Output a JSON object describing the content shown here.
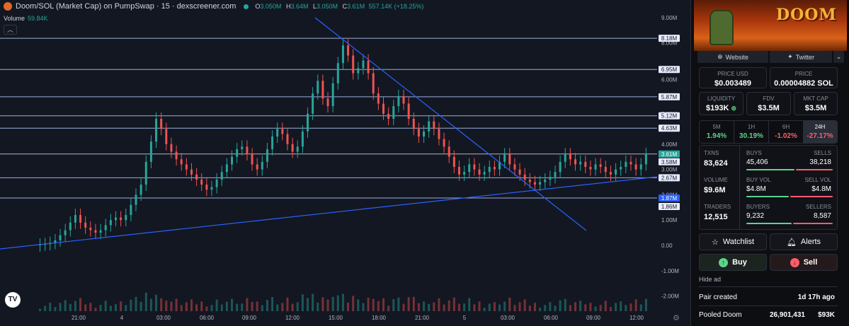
{
  "header": {
    "title": "Doom/SOL (Market Cap) on PumpSwap · 15 · dexscreener.com",
    "ohlc": {
      "o_label": "O",
      "o": "3.050M",
      "h_label": "H",
      "h": "3.64M",
      "l_label": "L",
      "l": "3.050M",
      "c_label": "C",
      "c": "3.61M",
      "change": "557.14K (+18.25%)"
    },
    "volume_label": "Volume",
    "volume_value": "59.84K",
    "collapse_icon": "chevron-up"
  },
  "chart_data": {
    "type": "candlestick",
    "y_ticks": [
      "9.00M",
      "8.00M",
      "6.00M",
      "5.00M",
      "4.00M",
      "3.00M",
      "2.00M",
      "1.00M",
      "0.00",
      "-1.00M",
      "-2.00M"
    ],
    "x_ticks": [
      "21:00",
      "4",
      "03:00",
      "06:00",
      "09:00",
      "12:00",
      "15:00",
      "18:00",
      "21:00",
      "5",
      "03:00",
      "06:00",
      "09:00",
      "12:00"
    ],
    "price_lines": [
      "8.18M",
      "6.95M",
      "5.87M",
      "5.12M",
      "4.63M",
      "3.61M",
      "3.58M",
      "2.67M",
      "1.87M",
      "1.86M"
    ],
    "current_price_label": "3.61M",
    "close_series": [
      0.03,
      0.05,
      0.1,
      0.2,
      0.4,
      0.6,
      0.9,
      1.2,
      0.9,
      0.7,
      0.6,
      0.5,
      0.6,
      0.8,
      1.0,
      1.1,
      1.0,
      1.2,
      1.6,
      2.0,
      2.4,
      3.3,
      4.1,
      5.0,
      4.6,
      4.0,
      3.7,
      3.4,
      3.2,
      3.0,
      2.8,
      2.6,
      2.4,
      2.2,
      2.3,
      2.6,
      2.9,
      3.2,
      3.5,
      3.8,
      3.9,
      3.6,
      3.2,
      3.0,
      3.3,
      3.8,
      4.3,
      4.6,
      4.4,
      4.0,
      3.7,
      3.9,
      4.5,
      5.2,
      6.0,
      6.5,
      5.8,
      5.5,
      6.4,
      7.2,
      7.9,
      7.5,
      6.8,
      7.0,
      7.3,
      6.8,
      6.0,
      5.6,
      5.2,
      5.0,
      5.5,
      5.9,
      5.6,
      5.0,
      4.6,
      4.3,
      4.5,
      4.9,
      4.6,
      4.2,
      3.9,
      3.5,
      3.1,
      2.8,
      2.9,
      3.2,
      3.0,
      2.8,
      2.9,
      3.1,
      3.0,
      3.3,
      3.6,
      3.2,
      3.0,
      2.8,
      2.6,
      2.5,
      2.4,
      2.5,
      2.6,
      2.7,
      2.9,
      3.3,
      3.6,
      3.4,
      3.2,
      3.3,
      3.1,
      3.0,
      3.2,
      3.1,
      2.9,
      2.8,
      3.0,
      3.1,
      3.3,
      3.2,
      3.0,
      3.2,
      3.61
    ],
    "trendlines": [
      {
        "name": "descending-resistance",
        "from": [
          "14:00",
          "9.00M"
        ],
        "to": [
          "08:30",
          "0.60M"
        ]
      },
      {
        "name": "ascending-support",
        "from": [
          "19:00",
          "-0.02M"
        ],
        "to": [
          "12:30",
          "2.67M"
        ]
      }
    ]
  },
  "token": {
    "banner_logo": "DOOM",
    "links": {
      "website": "Website",
      "twitter": "Twitter"
    },
    "price_usd_label": "PRICE USD",
    "price_usd": "$0.003489",
    "price_sol_label": "PRICE",
    "price_sol": "0.00004882 SOL",
    "liquidity_label": "LIQUIDITY",
    "liquidity": "$193K",
    "fdv_label": "FDV",
    "fdv": "$3.5M",
    "mktcap_label": "MKT CAP",
    "mktcap": "$3.5M",
    "timeframes": [
      {
        "label": "5M",
        "value": "1.94%",
        "color": "#5dd48a"
      },
      {
        "label": "1H",
        "value": "30.19%",
        "color": "#5dd48a"
      },
      {
        "label": "6H",
        "value": "-1.02%",
        "color": "#ff5c6c"
      },
      {
        "label": "24H",
        "value": "-27.17%",
        "color": "#ff5c6c"
      }
    ],
    "txns_label": "TXNS",
    "txns": "83,624",
    "buys_label": "BUYS",
    "buys": "45,406",
    "sells_label": "SELLS",
    "sells": "38,218",
    "volume_label": "VOLUME",
    "volume": "$9.6M",
    "buy_vol_label": "BUY VOL",
    "buy_vol": "$4.8M",
    "sell_vol_label": "SELL VOL",
    "sell_vol": "$4.8M",
    "traders_label": "TRADERS",
    "traders": "12,515",
    "buyers_label": "BUYERS",
    "buyers": "9,232",
    "sellers_label": "SELLERS",
    "sellers": "8,587",
    "buy_share": {
      "txns": 0.54,
      "volume": 0.5,
      "traders": 0.52
    },
    "watchlist": "Watchlist",
    "alerts": "Alerts",
    "buy": "Buy",
    "sell": "Sell",
    "hide_ad": "Hide ad",
    "pair_created_label": "Pair created",
    "pair_created": "1d 17h ago",
    "pooled_label": "Pooled Doom",
    "pooled_amount": "26,901,431",
    "pooled_usd": "$93K"
  },
  "colors": {
    "up": "#26a69a",
    "down": "#ef5350",
    "line": "#2962ff",
    "level": "#b2c8ff"
  }
}
